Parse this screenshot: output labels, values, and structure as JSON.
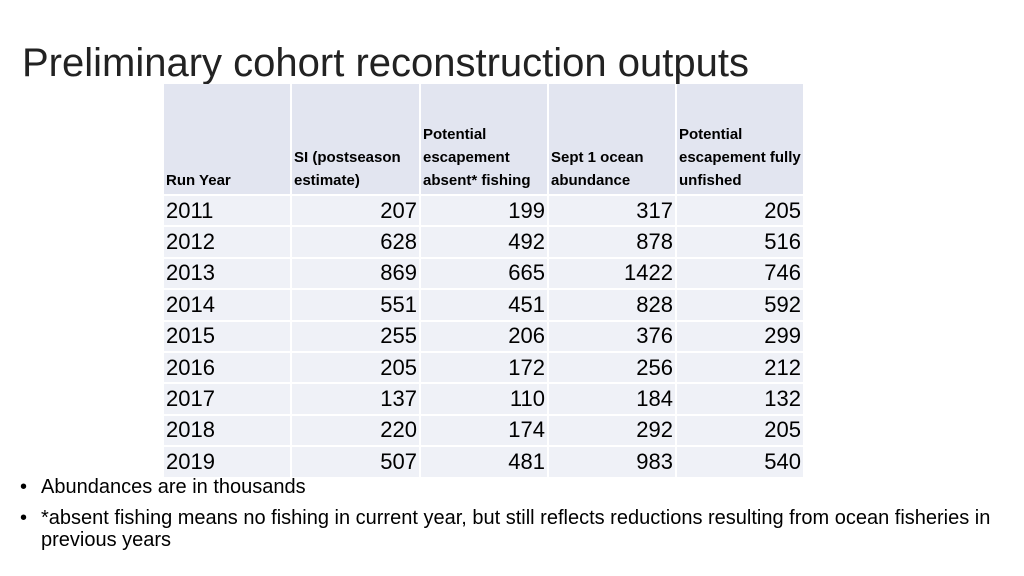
{
  "slide": {
    "title": "Preliminary cohort reconstruction outputs"
  },
  "table": {
    "headers": [
      "Run Year",
      "SI (postseason estimate)",
      "Potential escapement absent* fishing",
      "Sept 1 ocean abundance",
      "Potential escapement fully unfished"
    ],
    "rows": [
      [
        "2011",
        "207",
        "199",
        "317",
        "205"
      ],
      [
        "2012",
        "628",
        "492",
        "878",
        "516"
      ],
      [
        "2013",
        "869",
        "665",
        "1422",
        "746"
      ],
      [
        "2014",
        "551",
        "451",
        "828",
        "592"
      ],
      [
        "2015",
        "255",
        "206",
        "376",
        "299"
      ],
      [
        "2016",
        "205",
        "172",
        "256",
        "212"
      ],
      [
        "2017",
        "137",
        "110",
        "184",
        "132"
      ],
      [
        "2018",
        "220",
        "174",
        "292",
        "205"
      ],
      [
        "2019",
        "507",
        "481",
        "983",
        "540"
      ]
    ]
  },
  "notes": {
    "bullet_char": "•",
    "items": [
      "Abundances are in thousands",
      "*absent fishing means no fishing in current year, but still reflects reductions resulting from ocean fisheries in previous years"
    ]
  },
  "colors": {
    "header_fill": "#e2e5f0",
    "cell_fill": "#eff1f7"
  }
}
